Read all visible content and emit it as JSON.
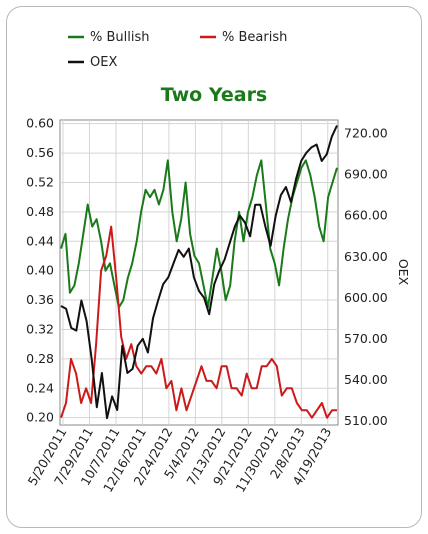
{
  "chart_data": {
    "type": "line",
    "title": "Two Years",
    "legend": [
      "% Bullish",
      "% Bearish",
      "OEX"
    ],
    "legend_placement": "top",
    "x_tick_labels": [
      "5/20/2011",
      "7/29/2011",
      "10/7/2011",
      "12/16/2011",
      "2/24/2012",
      "5/4/2012",
      "7/13/2012",
      "9/21/2012",
      "11/30/2012",
      "2/8/2013",
      "4/19/2013"
    ],
    "y_left": {
      "label": "",
      "range": [
        0.19,
        0.605
      ],
      "ticks": [
        "0.20",
        "0.24",
        "0.28",
        "0.32",
        "0.36",
        "0.40",
        "0.44",
        "0.48",
        "0.52",
        "0.56",
        "0.60"
      ]
    },
    "y_right": {
      "label": "OEX",
      "range": [
        507,
        730
      ],
      "ticks": [
        "510.00",
        "540.00",
        "570.00",
        "600.00",
        "630.00",
        "660.00",
        "690.00",
        "720.00"
      ]
    },
    "grid": true,
    "series": [
      {
        "name": "% Bullish",
        "color": "#1a7a1a",
        "axis": "left",
        "values": [
          0.43,
          0.45,
          0.37,
          0.38,
          0.41,
          0.45,
          0.49,
          0.46,
          0.47,
          0.44,
          0.4,
          0.41,
          0.38,
          0.35,
          0.36,
          0.39,
          0.41,
          0.44,
          0.48,
          0.51,
          0.5,
          0.51,
          0.49,
          0.51,
          0.55,
          0.48,
          0.44,
          0.47,
          0.52,
          0.45,
          0.42,
          0.41,
          0.38,
          0.35,
          0.39,
          0.43,
          0.4,
          0.36,
          0.38,
          0.44,
          0.48,
          0.44,
          0.48,
          0.5,
          0.53,
          0.55,
          0.49,
          0.43,
          0.41,
          0.38,
          0.43,
          0.47,
          0.5,
          0.52,
          0.54,
          0.55,
          0.53,
          0.5,
          0.46,
          0.44,
          0.5,
          0.52,
          0.54
        ]
      },
      {
        "name": "% Bearish",
        "color": "#cc1a1a",
        "axis": "left",
        "values": [
          0.2,
          0.22,
          0.28,
          0.26,
          0.22,
          0.24,
          0.22,
          0.3,
          0.4,
          0.42,
          0.46,
          0.39,
          0.31,
          0.28,
          0.3,
          0.27,
          0.26,
          0.27,
          0.27,
          0.26,
          0.28,
          0.24,
          0.25,
          0.21,
          0.24,
          0.21,
          0.23,
          0.25,
          0.27,
          0.25,
          0.25,
          0.24,
          0.27,
          0.27,
          0.24,
          0.24,
          0.23,
          0.26,
          0.24,
          0.24,
          0.27,
          0.27,
          0.28,
          0.27,
          0.23,
          0.24,
          0.24,
          0.22,
          0.21,
          0.21,
          0.2,
          0.21,
          0.22,
          0.2,
          0.21,
          0.21
        ]
      },
      {
        "name": "OEX",
        "color": "#111111",
        "axis": "right",
        "values": [
          594,
          592,
          578,
          576,
          598,
          583,
          555,
          520,
          545,
          512,
          528,
          518,
          565,
          545,
          548,
          565,
          570,
          560,
          585,
          598,
          610,
          615,
          625,
          635,
          630,
          636,
          615,
          605,
          600,
          588,
          610,
          620,
          628,
          640,
          652,
          660,
          655,
          645,
          668,
          668,
          652,
          638,
          660,
          675,
          681,
          670,
          687,
          700,
          706,
          710,
          712,
          700,
          705,
          718,
          726
        ]
      }
    ]
  }
}
